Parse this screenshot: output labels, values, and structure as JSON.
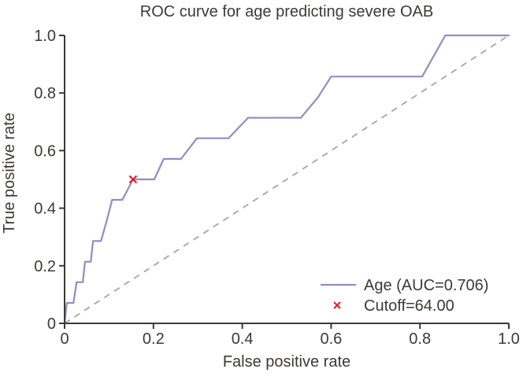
{
  "chart_data": {
    "type": "line",
    "title": "ROC curve for age predicting severe OAB",
    "xlabel": "False positive rate",
    "ylabel": "True positive rate",
    "xlim": [
      0,
      1
    ],
    "ylim": [
      0,
      1
    ],
    "grid": false,
    "legend_position": "lower right",
    "x_ticks": {
      "values": [
        0,
        0.2,
        0.4,
        0.6,
        0.8,
        1.0
      ],
      "labels": [
        "0",
        "0.2",
        "0.4",
        "0.6",
        "0.8",
        "1.0"
      ]
    },
    "y_ticks": {
      "values": [
        0,
        0.2,
        0.4,
        0.6,
        0.8,
        1.0
      ],
      "labels": [
        "0",
        "0.2",
        "0.4",
        "0.6",
        "0.8",
        "1.0"
      ]
    },
    "auc": 0.706,
    "cutoff_value": "64.00",
    "series": [
      {
        "name": "Age (AUC=0.706)",
        "type": "line",
        "color": "#8f8dc7",
        "points": [
          [
            0.0,
            0.0
          ],
          [
            0.005,
            0.071
          ],
          [
            0.02,
            0.071
          ],
          [
            0.027,
            0.143
          ],
          [
            0.041,
            0.143
          ],
          [
            0.046,
            0.214
          ],
          [
            0.059,
            0.214
          ],
          [
            0.064,
            0.286
          ],
          [
            0.082,
            0.286
          ],
          [
            0.095,
            0.357
          ],
          [
            0.107,
            0.429
          ],
          [
            0.13,
            0.429
          ],
          [
            0.154,
            0.5
          ],
          [
            0.202,
            0.5
          ],
          [
            0.223,
            0.571
          ],
          [
            0.262,
            0.571
          ],
          [
            0.298,
            0.643
          ],
          [
            0.369,
            0.643
          ],
          [
            0.413,
            0.714
          ],
          [
            0.532,
            0.714
          ],
          [
            0.571,
            0.786
          ],
          [
            0.6,
            0.857
          ],
          [
            0.805,
            0.857
          ],
          [
            0.857,
            1.0
          ],
          [
            1.0,
            1.0
          ]
        ]
      },
      {
        "name": "Cutoff=64.00",
        "type": "marker",
        "marker": "x",
        "color": "#e51f26",
        "points": [
          [
            0.154,
            0.5
          ]
        ]
      }
    ],
    "reference_line": {
      "name": "chance-diagonal",
      "style": "dashed",
      "color": "#a6a6a6",
      "points": [
        [
          0,
          0
        ],
        [
          1,
          1
        ]
      ]
    }
  },
  "colors": {
    "background": "#ffffff",
    "text": "#3d3935",
    "axis": "#3d3935",
    "curve": "#8f8dc7",
    "cutoff": "#e51f26",
    "reference": "#a6a6a6"
  }
}
